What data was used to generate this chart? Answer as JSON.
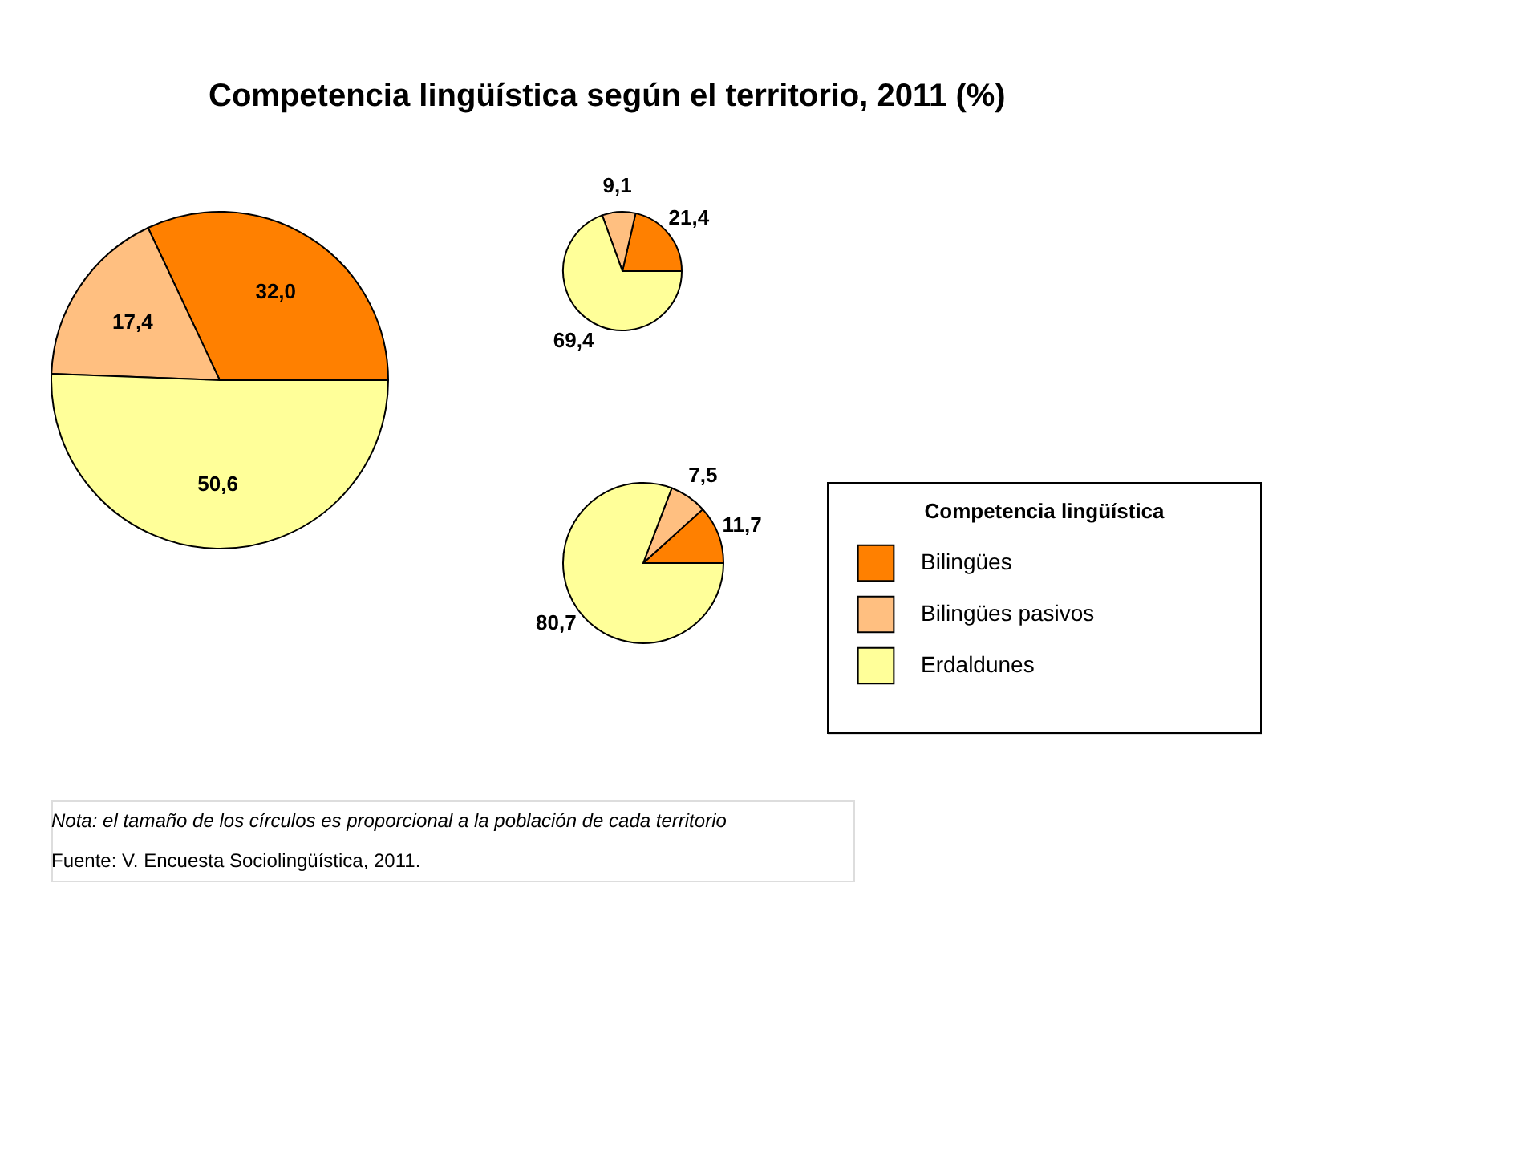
{
  "chart_data": [
    {
      "type": "pie",
      "title": "Competencia lingüística según el territorio, 2011 (%)",
      "values": [
        32.0,
        17.4,
        50.6
      ],
      "value_labels": [
        "32,0",
        "17,4",
        "50,6"
      ],
      "colors": [
        "#ff8000",
        "#ffbf80",
        "#ffff99"
      ],
      "annotations": [
        "Nota: el tamaño de los círculos es proporcional a la población de cada territorio",
        "Fuente: V. Encuesta Sociolingüística, 2011."
      ]
    },
    {
      "type": "pie",
      "values": [
        21.4,
        9.1,
        69.4
      ],
      "value_labels": [
        "21,4",
        "9,1",
        "69,4"
      ],
      "colors": [
        "#ff8000",
        "#ffbf80",
        "#ffff99"
      ]
    },
    {
      "type": "pie",
      "categories": [
        "Bilingües",
        "Bilingües pasivos",
        "Erdaldunes"
      ],
      "values": [
        11.7,
        7.5,
        80.7
      ],
      "value_labels": [
        "11,7",
        "7,5",
        "80,7"
      ],
      "colors": [
        "#ff8000",
        "#ffbf80",
        "#ffff99"
      ],
      "legend": "bottom right",
      "legend_title": "Competencia lingüística"
    }
  ]
}
